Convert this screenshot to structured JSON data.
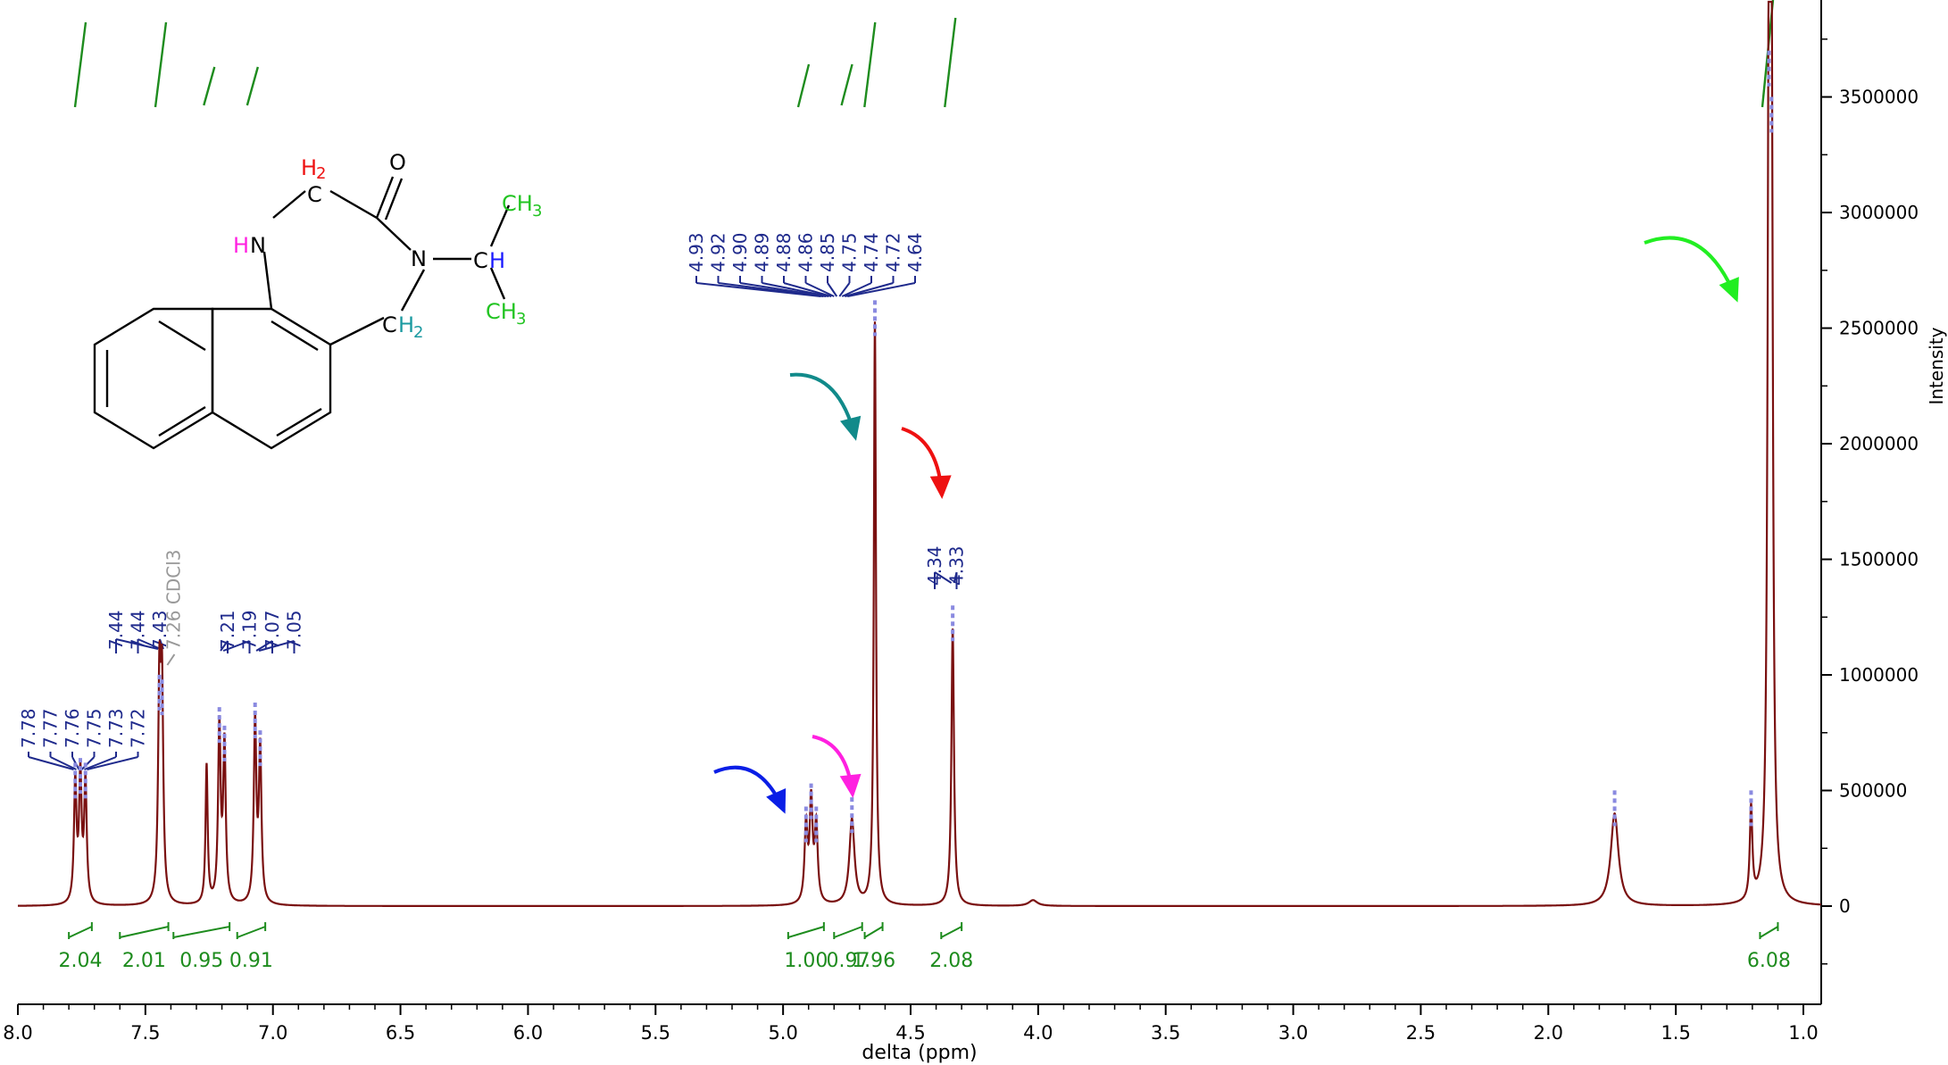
{
  "chart_data": {
    "type": "line",
    "xlabel": "delta (ppm)",
    "ylabel": "Intensity",
    "xlim": [
      8.0,
      0.93
    ],
    "ylim": [
      -500000,
      3900000
    ],
    "x_ticks": [
      8.0,
      7.5,
      7.0,
      6.5,
      6.0,
      5.5,
      5.0,
      4.5,
      4.0,
      3.5,
      3.0,
      2.5,
      2.0,
      1.5,
      1.0
    ],
    "x_tick_labels": [
      "8.0",
      "7.5",
      "7.0",
      "6.5",
      "6.0",
      "5.5",
      "5.0",
      "4.5",
      "4.0",
      "3.5",
      "3.0",
      "2.5",
      "2.0",
      "1.5",
      "1.0"
    ],
    "y_ticks": [
      0,
      500000,
      1000000,
      1500000,
      2000000,
      2500000,
      3000000,
      3500000
    ],
    "y_tick_labels": [
      "0",
      "500000",
      "1000000",
      "1500000",
      "2000000",
      "2500000",
      "3000000",
      "3500000"
    ],
    "colors": {
      "spectrum": "#7a1010",
      "peak_labels": "#1f2a8c",
      "integrals": "#1e8c1e",
      "solvent": "#999999"
    },
    "peaks": [
      {
        "x": 7.775,
        "height": 520000,
        "width": 0.006
      },
      {
        "x": 7.755,
        "height": 540000,
        "width": 0.006
      },
      {
        "x": 7.735,
        "height": 520000,
        "width": 0.006
      },
      {
        "x": 7.445,
        "height": 900000,
        "width": 0.006
      },
      {
        "x": 7.435,
        "height": 880000,
        "width": 0.006
      },
      {
        "x": 7.26,
        "height": 600000,
        "width": 0.005
      },
      {
        "x": 7.21,
        "height": 760000,
        "width": 0.006
      },
      {
        "x": 7.19,
        "height": 680000,
        "width": 0.006
      },
      {
        "x": 7.07,
        "height": 780000,
        "width": 0.006
      },
      {
        "x": 7.05,
        "height": 660000,
        "width": 0.006
      },
      {
        "x": 4.91,
        "height": 330000,
        "width": 0.007
      },
      {
        "x": 4.89,
        "height": 430000,
        "width": 0.007
      },
      {
        "x": 4.87,
        "height": 330000,
        "width": 0.007
      },
      {
        "x": 4.73,
        "height": 370000,
        "width": 0.012
      },
      {
        "x": 4.64,
        "height": 2520000,
        "width": 0.005
      },
      {
        "x": 4.335,
        "height": 1200000,
        "width": 0.006
      },
      {
        "x": 4.02,
        "height": 25000,
        "width": 0.02
      },
      {
        "x": 1.74,
        "height": 400000,
        "width": 0.018
      },
      {
        "x": 1.205,
        "height": 400000,
        "width": 0.006
      },
      {
        "x": 1.135,
        "height": 3600000,
        "width": 0.006
      },
      {
        "x": 1.125,
        "height": 3400000,
        "width": 0.006
      }
    ],
    "peak_label_groups": [
      {
        "labels": [
          "7.78",
          "7.77",
          "7.76",
          "7.75",
          "7.73",
          "7.72"
        ],
        "target_ppm": 7.755
      },
      {
        "labels": [
          "7.44",
          "7.44",
          "7.43"
        ],
        "target_ppm": 7.44
      },
      {
        "labels": [
          "7.21",
          "7.19"
        ],
        "target_ppm": 7.2
      },
      {
        "labels": [
          "7.07",
          "7.05"
        ],
        "target_ppm": 7.06
      },
      {
        "labels": [
          "4.93",
          "4.92",
          "4.90",
          "4.89",
          "4.88",
          "4.86",
          "4.85",
          "4.75",
          "4.74",
          "4.72",
          "4.64"
        ],
        "target_ppm": 4.8
      },
      {
        "labels": [
          "4.34",
          "4.33"
        ],
        "target_ppm": 4.335
      }
    ],
    "solvent_label": {
      "text": "7.26 CDCl3",
      "ppm": 7.26
    },
    "integrals": [
      {
        "from": 7.8,
        "to": 7.71,
        "value": "2.04"
      },
      {
        "from": 7.6,
        "to": 7.41,
        "value": "2.01"
      },
      {
        "from": 7.39,
        "to": 7.17,
        "value": "0.95"
      },
      {
        "from": 7.14,
        "to": 7.03,
        "value": "0.91"
      },
      {
        "from": 4.98,
        "to": 4.84,
        "value": "1.00"
      },
      {
        "from": 4.8,
        "to": 4.69,
        "value": "0.97"
      },
      {
        "from": 4.68,
        "to": 4.61,
        "value": "1.96"
      },
      {
        "from": 4.38,
        "to": 4.3,
        "value": "2.08"
      },
      {
        "from": 1.17,
        "to": 1.1,
        "value": "6.08"
      }
    ],
    "annotations": [
      {
        "type": "arrow",
        "color": "#0a1ee6",
        "target_ppm": 4.89
      },
      {
        "type": "arrow",
        "color": "#ff20e0",
        "target_ppm": 4.73
      },
      {
        "type": "arrow",
        "color": "#118a8a",
        "target_ppm": 4.64
      },
      {
        "type": "arrow",
        "color": "#ee1111",
        "target_ppm": 4.34
      },
      {
        "type": "arrow",
        "color": "#22ee22",
        "target_ppm": 1.13
      }
    ]
  },
  "molecule": {
    "labels": {
      "ch2_top_h": "H",
      "ch2_top_sub": "2",
      "ch2_top_c": "C",
      "carbonyl_o": "O",
      "nh_h": "H",
      "nh_n": "N",
      "n_amide": "N",
      "ch_c": "C",
      "ch_h": "H",
      "ch3_top_c": "CH",
      "ch3_top_sub": "3",
      "ch3_bot_c": "CH",
      "ch3_bot_sub": "3",
      "ch2_bot_c": "C",
      "ch2_bot_h": "H",
      "ch2_bot_sub": "2"
    }
  }
}
